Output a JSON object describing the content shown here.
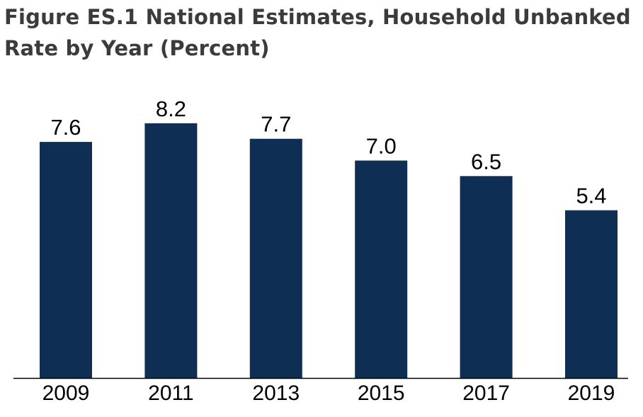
{
  "chart_data": {
    "type": "bar",
    "title": "Figure ES.1 National Estimates, Household Unbanked Rate by Year (Percent)",
    "categories": [
      "2009",
      "2011",
      "2013",
      "2015",
      "2017",
      "2019"
    ],
    "values": [
      7.6,
      8.2,
      7.7,
      7.0,
      6.5,
      5.4
    ],
    "value_labels": [
      "7.6",
      "8.2",
      "7.7",
      "7.0",
      "6.5",
      "5.4"
    ],
    "xlabel": "",
    "ylabel": "",
    "ylim": [
      0,
      8.8
    ],
    "grid": false,
    "legend": "none",
    "colors": {
      "bar": "#0e2f53",
      "axis": "#000000",
      "title": "#3b3b3b"
    }
  }
}
